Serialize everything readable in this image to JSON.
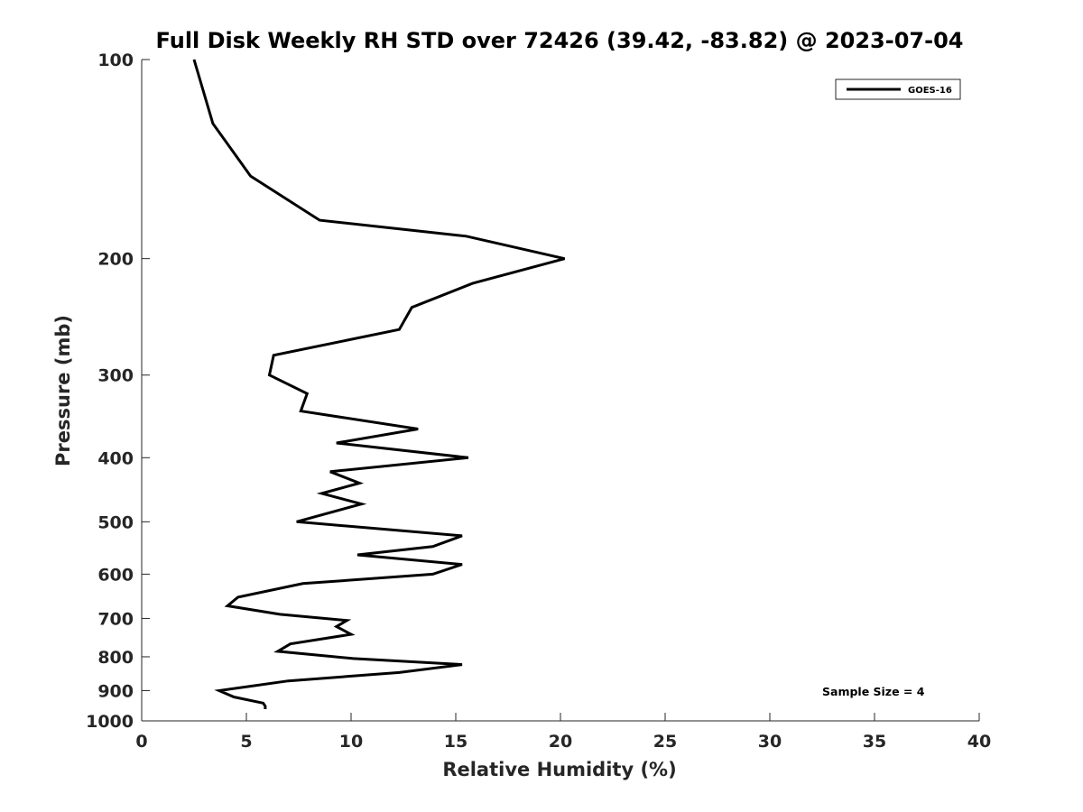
{
  "chart_data": {
    "type": "line",
    "title": "Full Disk Weekly RH STD over 72426 (39.42, -83.82) @ 2023-07-04",
    "xlabel": "Relative Humidity (%)",
    "ylabel": "Pressure (mb)",
    "xlim": [
      0,
      40
    ],
    "ylim": [
      100,
      1000
    ],
    "y_scale": "log",
    "y_reversed": true,
    "x_ticks": [
      0,
      5,
      10,
      15,
      20,
      25,
      30,
      35,
      40
    ],
    "y_ticks": [
      100,
      200,
      300,
      400,
      500,
      600,
      700,
      800,
      900,
      1000
    ],
    "grid": false,
    "legend_position": "top-right",
    "series": [
      {
        "name": "GOES-16",
        "color": "#000000",
        "points": [
          [
            2.5,
            100
          ],
          [
            3.4,
            125
          ],
          [
            5.2,
            150
          ],
          [
            8.5,
            175
          ],
          [
            15.5,
            185
          ],
          [
            20.2,
            200
          ],
          [
            15.8,
            218
          ],
          [
            12.9,
            237
          ],
          [
            12.3,
            256
          ],
          [
            6.3,
            280
          ],
          [
            6.1,
            300
          ],
          [
            7.9,
            320
          ],
          [
            7.6,
            340
          ],
          [
            13.2,
            362
          ],
          [
            9.3,
            380
          ],
          [
            15.6,
            400
          ],
          [
            9.0,
            420
          ],
          [
            10.4,
            437
          ],
          [
            8.6,
            453
          ],
          [
            10.5,
            470
          ],
          [
            7.4,
            500
          ],
          [
            15.3,
            525
          ],
          [
            13.9,
            545
          ],
          [
            10.3,
            561
          ],
          [
            15.3,
            580
          ],
          [
            13.9,
            600
          ],
          [
            7.7,
            620
          ],
          [
            4.6,
            650
          ],
          [
            4.1,
            670
          ],
          [
            6.6,
            690
          ],
          [
            9.8,
            705
          ],
          [
            9.3,
            720
          ],
          [
            10.0,
            740
          ],
          [
            7.1,
            765
          ],
          [
            6.5,
            785
          ],
          [
            10.1,
            805
          ],
          [
            15.3,
            822
          ],
          [
            12.3,
            845
          ],
          [
            7.0,
            870
          ],
          [
            3.7,
            900
          ],
          [
            4.4,
            920
          ],
          [
            5.8,
            940
          ],
          [
            5.9,
            950
          ],
          [
            5.9,
            960
          ]
        ]
      }
    ],
    "annotation": "Sample Size = 4"
  }
}
